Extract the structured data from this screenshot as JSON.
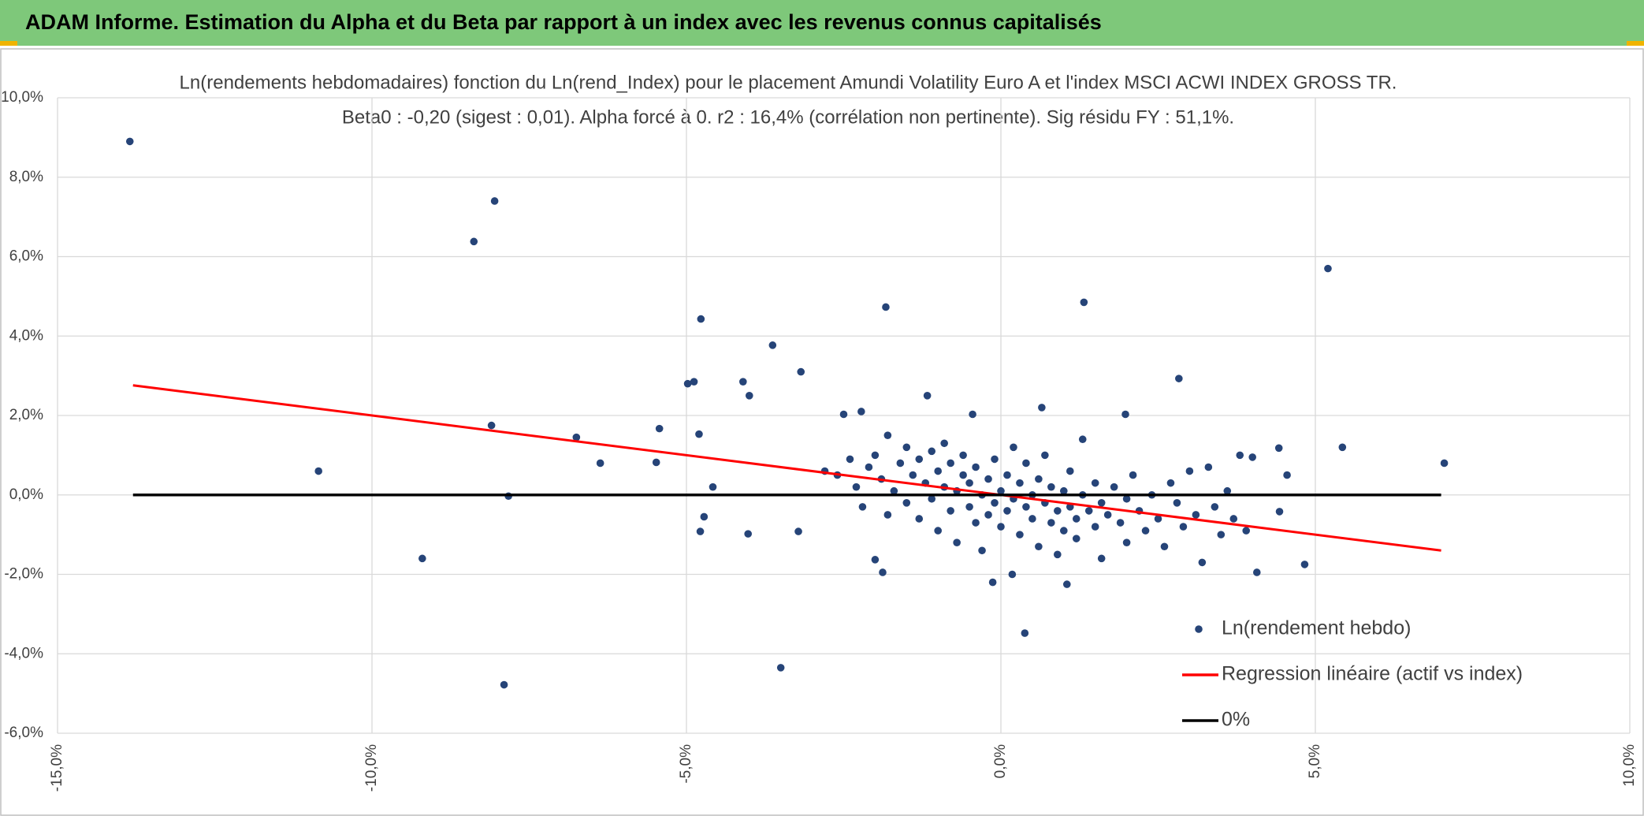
{
  "header": {
    "title": "ADAM Informe. Estimation du Alpha et du Beta par rapport à un index avec les revenus connus capitalisés"
  },
  "chart_data": {
    "type": "scatter",
    "title": "Ln(rendements hebdomadaires) fonction du Ln(rend_Index) pour le placement Amundi Volatility Euro A  et l'index MSCI ACWI INDEX GROSS TR.",
    "subtitle": "Beta0 : -0,20 (sigest : 0,01). Alpha forcé à 0. r2 : 16,4% (corrélation non pertinente). Sig résidu FY : 51,1%.",
    "xlim": [
      -15,
      10
    ],
    "ylim": [
      -6,
      10
    ],
    "grid": true,
    "legend": "bottom-right",
    "xticks": [
      {
        "value": -15,
        "label": "-15,0%"
      },
      {
        "value": -10,
        "label": "-10,0%"
      },
      {
        "value": -5,
        "label": "-5,0%"
      },
      {
        "value": 0,
        "label": "0,0%"
      },
      {
        "value": 5,
        "label": "5,0%"
      },
      {
        "value": 10,
        "label": "10,0%"
      }
    ],
    "yticks": [
      {
        "value": -6,
        "label": "-6,0%"
      },
      {
        "value": -4,
        "label": "-4,0%"
      },
      {
        "value": -2,
        "label": "-2,0%"
      },
      {
        "value": 0,
        "label": "0,0%"
      },
      {
        "value": 2,
        "label": "2,0%"
      },
      {
        "value": 4,
        "label": "4,0%"
      },
      {
        "value": 6,
        "label": "6,0%"
      },
      {
        "value": 8,
        "label": "8,0%"
      },
      {
        "value": 10,
        "label": "10,0%"
      }
    ],
    "series": [
      {
        "name": "Ln(rendement hebdo)",
        "color": "#264478",
        "mode": "markers",
        "x": [
          -13.85,
          -8.05,
          -8.38,
          -10.85,
          -8.1,
          -7.83,
          -9.2,
          -7.9,
          -6.75,
          -6.37,
          -5.43,
          -5.48,
          -4.98,
          -4.88,
          -4.77,
          -4.8,
          -4.72,
          -4.78,
          -4.58,
          -4.1,
          -4.0,
          -4.02,
          -3.63,
          -3.5,
          -3.18,
          -3.22,
          -1.83,
          -2.0,
          -1.88,
          -1.17,
          1.32,
          5.2,
          5.43,
          7.05,
          4.83,
          4.55,
          4.42,
          4.43,
          4.07,
          2.83,
          0.38,
          -0.13,
          1.05,
          0.18,
          0.65,
          -0.45,
          1.98,
          -2.22,
          -2.5,
          3.8,
          4.0,
          -2.8,
          -2.6,
          -2.4,
          -2.3,
          -2.2,
          -2.1,
          -2.0,
          -1.9,
          -1.8,
          -1.8,
          -1.7,
          -1.6,
          -1.5,
          -1.5,
          -1.4,
          -1.3,
          -1.3,
          -1.2,
          -1.1,
          -1.1,
          -1.0,
          -1.0,
          -0.9,
          -0.9,
          -0.8,
          -0.8,
          -0.7,
          -0.7,
          -0.6,
          -0.6,
          -0.5,
          -0.5,
          -0.4,
          -0.4,
          -0.3,
          -0.3,
          -0.2,
          -0.2,
          -0.1,
          -0.1,
          0.0,
          0.0,
          0.1,
          0.1,
          0.2,
          0.2,
          0.3,
          0.3,
          0.4,
          0.4,
          0.5,
          0.5,
          0.6,
          0.6,
          0.7,
          0.7,
          0.8,
          0.8,
          0.9,
          0.9,
          1.0,
          1.0,
          1.1,
          1.1,
          1.2,
          1.2,
          1.3,
          1.3,
          1.4,
          1.5,
          1.5,
          1.6,
          1.6,
          1.7,
          1.8,
          1.9,
          2.0,
          2.0,
          2.1,
          2.2,
          2.3,
          2.4,
          2.5,
          2.6,
          2.7,
          2.8,
          2.9,
          3.0,
          3.1,
          3.2,
          3.3,
          3.4,
          3.5,
          3.6,
          3.7,
          3.9
        ],
        "y": [
          8.9,
          7.4,
          6.38,
          0.6,
          1.75,
          -0.03,
          -1.6,
          -4.78,
          1.45,
          0.8,
          1.67,
          0.82,
          2.8,
          2.85,
          4.43,
          1.53,
          -0.55,
          -0.92,
          0.2,
          2.85,
          2.5,
          -0.98,
          3.77,
          -4.35,
          3.1,
          -0.92,
          4.73,
          -1.63,
          -1.95,
          2.5,
          4.85,
          5.7,
          1.2,
          0.8,
          -1.75,
          0.5,
          1.18,
          -0.42,
          -1.95,
          2.93,
          -3.48,
          -2.2,
          -2.25,
          -2.0,
          2.2,
          2.03,
          2.03,
          2.1,
          2.03,
          1.0,
          0.95,
          0.6,
          0.5,
          0.9,
          0.2,
          -0.3,
          0.7,
          1.0,
          0.4,
          -0.5,
          1.5,
          0.1,
          0.8,
          -0.2,
          1.2,
          0.5,
          -0.6,
          0.9,
          0.3,
          -0.1,
          1.1,
          0.6,
          -0.9,
          0.2,
          1.3,
          -0.4,
          0.8,
          0.1,
          -1.2,
          0.5,
          1.0,
          -0.3,
          0.3,
          -0.7,
          0.7,
          0.0,
          -1.4,
          0.4,
          -0.5,
          0.9,
          -0.2,
          0.1,
          -0.8,
          0.5,
          -0.4,
          1.2,
          -0.1,
          -1.0,
          0.3,
          -0.3,
          0.8,
          -0.6,
          0.0,
          -1.3,
          0.4,
          -0.2,
          1.0,
          -0.7,
          0.2,
          -0.4,
          -1.5,
          0.1,
          -0.9,
          0.6,
          -0.3,
          -0.6,
          -1.1,
          0.0,
          1.4,
          -0.4,
          -0.8,
          0.3,
          -0.2,
          -1.6,
          -0.5,
          0.2,
          -0.7,
          -0.1,
          -1.2,
          0.5,
          -0.4,
          -0.9,
          0.0,
          -0.6,
          -1.3,
          0.3,
          -0.2,
          -0.8,
          0.6,
          -0.5,
          -1.7,
          0.7,
          -0.3,
          -1.0,
          0.1,
          -0.6,
          -0.9
        ]
      },
      {
        "name": "Regression linéaire (actif vs index)",
        "color": "#ff0000",
        "mode": "lines",
        "x": [
          -13.8,
          7.0
        ],
        "y": [
          2.76,
          -1.4
        ]
      },
      {
        "name": "0%",
        "color": "#000000",
        "mode": "lines",
        "x": [
          -13.8,
          7.0
        ],
        "y": [
          0,
          0
        ]
      }
    ]
  }
}
